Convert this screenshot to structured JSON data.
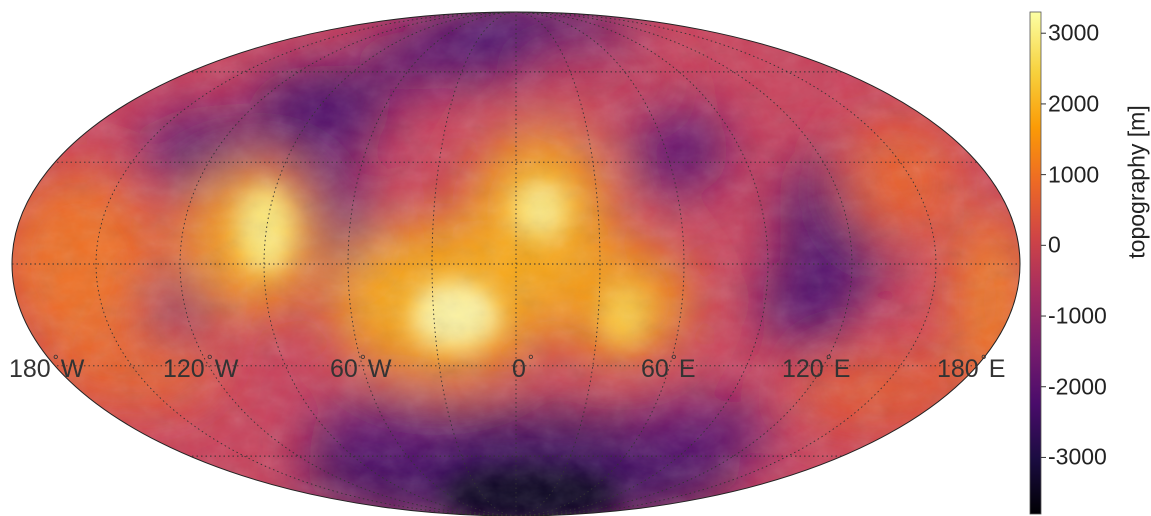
{
  "map": {
    "projection": "Mollweide",
    "variable": "topography",
    "colormap": "inferno",
    "colormap_stops": [
      "#000004",
      "#1b0c41",
      "#4a0c6b",
      "#781c6d",
      "#a52c60",
      "#cf4446",
      "#ed6925",
      "#fb9b06",
      "#f7d13d",
      "#fcffa4"
    ],
    "graticule": "dotted",
    "longitude_labels": [
      {
        "value": "180",
        "hemi": "W"
      },
      {
        "value": "120",
        "hemi": "W"
      },
      {
        "value": "60",
        "hemi": "W"
      },
      {
        "value": "0",
        "hemi": ""
      },
      {
        "value": "60",
        "hemi": "E"
      },
      {
        "value": "120",
        "hemi": "E"
      },
      {
        "value": "180",
        "hemi": "E"
      }
    ],
    "degree_symbol": "°"
  },
  "colorbar": {
    "label": "topography [m]",
    "range": [
      -3800,
      3300
    ],
    "ticks": [
      "3000",
      "2000",
      "1000",
      "0",
      "-1000",
      "-2000",
      "-3000"
    ],
    "tick_values": [
      3000,
      2000,
      1000,
      0,
      -1000,
      -2000,
      -3000
    ]
  }
}
